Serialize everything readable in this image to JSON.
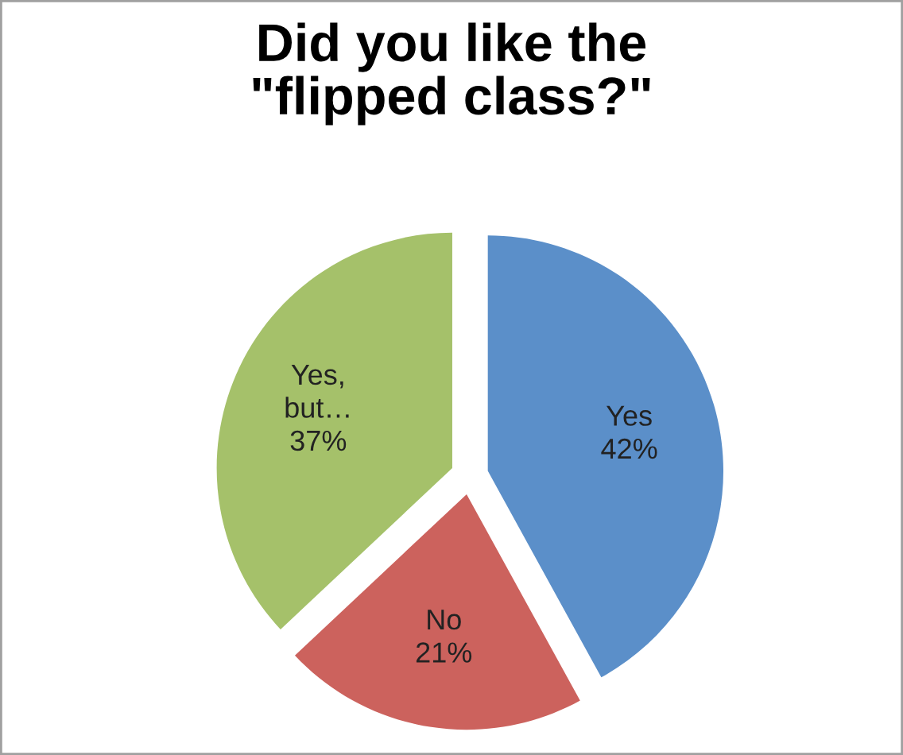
{
  "chart_data": {
    "type": "pie",
    "title": "Did you like the\n\"flipped class?\"",
    "categories": [
      "Yes",
      "No",
      "Yes,\nbut…"
    ],
    "values": [
      42,
      21,
      37
    ],
    "colors": [
      "#5b8fc9",
      "#cc625d",
      "#a5c16a"
    ],
    "data_labels": true,
    "value_labels": [
      "42%",
      "21%",
      "37%"
    ],
    "legend": false
  }
}
